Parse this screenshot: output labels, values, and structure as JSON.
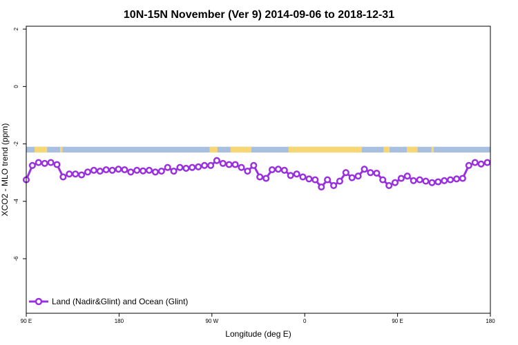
{
  "chart_data": {
    "type": "line",
    "title": "10N-15N November (Ver 9)   2014-09-06 to 2018-12-31",
    "xlabel": "Longitude (deg E)",
    "ylabel": "XCO2 - MLO trend (ppm)",
    "xlim": [
      0,
      100
    ],
    "ylim": [
      -7.9,
      2.1
    ],
    "x_ticks": [
      {
        "pos": 0,
        "label": "90 E"
      },
      {
        "pos": 20,
        "label": "180"
      },
      {
        "pos": 40,
        "label": "90 W"
      },
      {
        "pos": 60,
        "label": "0"
      },
      {
        "pos": 80,
        "label": "90 E"
      },
      {
        "pos": 100,
        "label": "180"
      }
    ],
    "y_ticks": [
      {
        "value": 2,
        "label": "2"
      },
      {
        "value": 0,
        "label": "0"
      },
      {
        "value": -2,
        "label": "-2"
      },
      {
        "value": -4,
        "label": "-4"
      },
      {
        "value": -6,
        "label": "-6"
      }
    ],
    "grid": false,
    "legend_position": "bottom-left",
    "land_band": {
      "y_top": -2.1,
      "y_bottom": -2.3,
      "ocean_color": "#a9bfe0",
      "land_color": "#f7d774",
      "land_segments": [
        [
          1.8,
          4.5
        ],
        [
          7.3,
          7.8
        ],
        [
          39.5,
          41.2
        ],
        [
          44.0,
          48.5
        ],
        [
          56.5,
          72.3
        ],
        [
          77.0,
          78.3
        ],
        [
          82.0,
          84.3
        ],
        [
          87.3,
          87.8
        ]
      ]
    },
    "series": [
      {
        "name": "Land (Nadir&Glint) and Ocean (Glint)",
        "color": "#9a2fe0",
        "x": [
          0.0,
          1.32,
          2.65,
          3.97,
          5.3,
          6.62,
          7.95,
          9.27,
          10.6,
          11.92,
          13.25,
          14.57,
          15.89,
          17.22,
          18.54,
          19.87,
          21.19,
          22.52,
          23.84,
          25.17,
          26.49,
          27.81,
          29.14,
          30.46,
          31.79,
          33.11,
          34.44,
          35.76,
          37.09,
          38.41,
          39.74,
          41.06,
          42.38,
          43.71,
          45.03,
          46.36,
          47.68,
          49.01,
          50.33,
          51.66,
          52.98,
          54.3,
          55.63,
          56.95,
          58.28,
          59.6,
          60.93,
          62.25,
          63.58,
          64.9,
          66.23,
          67.55,
          68.87,
          70.2,
          71.52,
          72.85,
          74.17,
          75.5,
          76.82,
          78.15,
          79.47,
          80.79,
          82.12,
          83.44,
          84.77,
          86.09,
          87.42,
          88.74,
          90.07,
          91.39,
          92.72,
          94.04,
          95.36,
          96.69,
          98.01,
          99.34
        ],
        "y": [
          -3.25,
          -2.75,
          -2.65,
          -2.68,
          -2.65,
          -2.72,
          -3.15,
          -3.05,
          -3.05,
          -3.08,
          -2.98,
          -2.92,
          -2.95,
          -2.9,
          -2.92,
          -2.88,
          -2.9,
          -2.98,
          -2.92,
          -2.94,
          -2.92,
          -2.98,
          -2.95,
          -2.82,
          -2.95,
          -2.82,
          -2.85,
          -2.82,
          -2.8,
          -2.75,
          -2.75,
          -2.58,
          -2.68,
          -2.72,
          -2.72,
          -2.82,
          -2.95,
          -2.75,
          -3.15,
          -3.2,
          -2.9,
          -2.88,
          -2.92,
          -3.1,
          -3.05,
          -3.15,
          -3.22,
          -3.25,
          -3.5,
          -3.25,
          -3.45,
          -3.3,
          -3.0,
          -3.18,
          -3.12,
          -2.88,
          -3.0,
          -3.02,
          -3.25,
          -3.45,
          -3.35,
          -3.2,
          -3.12,
          -3.28,
          -3.25,
          -3.3,
          -3.35,
          -3.32,
          -3.28,
          -3.25,
          -3.22,
          -3.2,
          -2.75,
          -2.65,
          -2.7,
          -2.65
        ]
      }
    ]
  }
}
